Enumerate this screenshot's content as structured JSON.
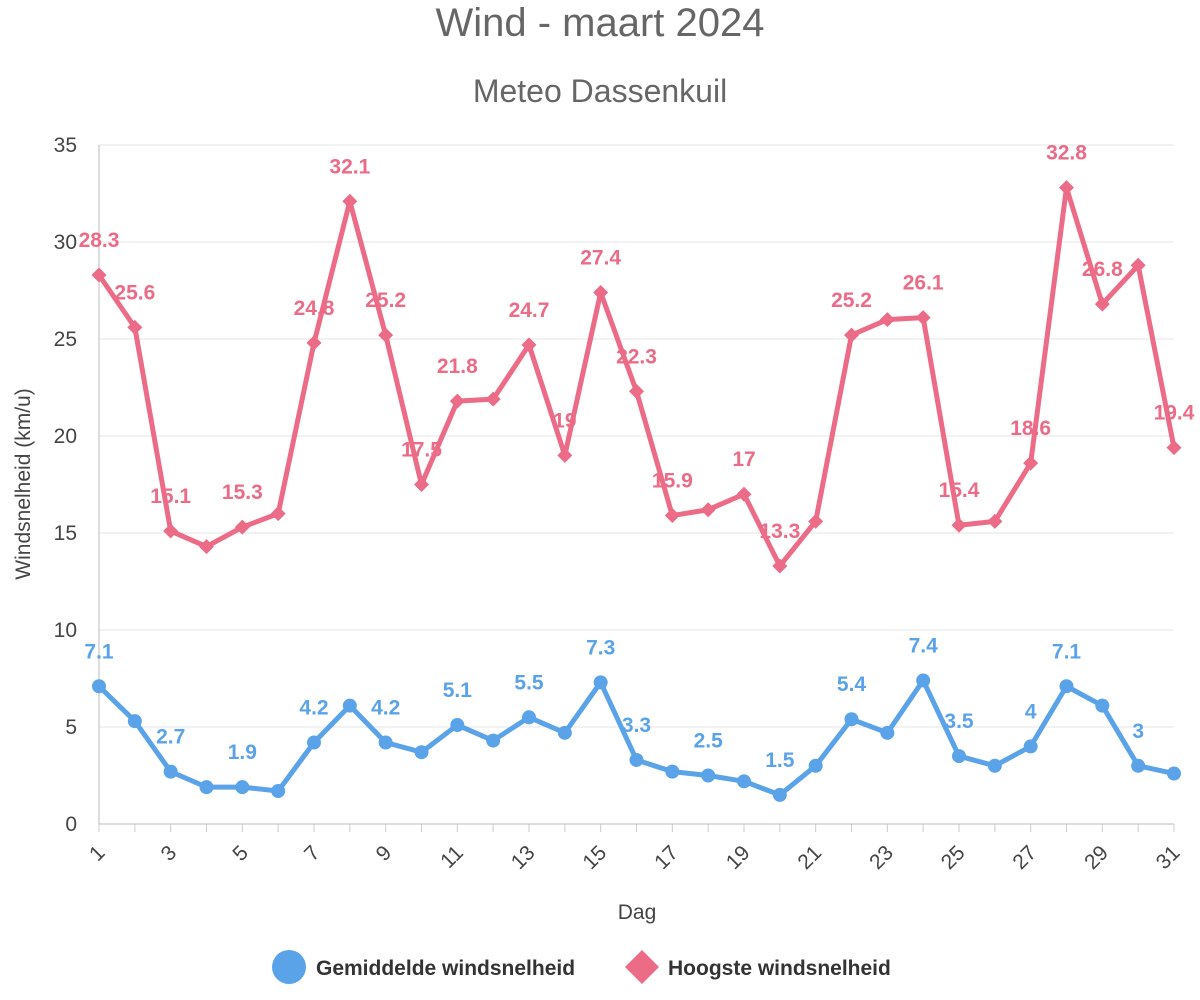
{
  "chart_data": {
    "type": "line",
    "title": "Wind - maart 2024",
    "subtitle": "Meteo Dassenkuil",
    "xlabel": "Dag",
    "ylabel": "Windsnelheid (km/u)",
    "ylim": [
      0,
      35
    ],
    "yticks": [
      0,
      5,
      10,
      15,
      20,
      25,
      30,
      35
    ],
    "x": [
      1,
      2,
      3,
      4,
      5,
      6,
      7,
      8,
      9,
      10,
      11,
      12,
      13,
      14,
      15,
      16,
      17,
      18,
      19,
      20,
      21,
      22,
      23,
      24,
      25,
      26,
      27,
      28,
      29,
      30,
      31
    ],
    "xtick_labels": [
      "1",
      "3",
      "5",
      "7",
      "9",
      "11",
      "13",
      "15",
      "17",
      "19",
      "21",
      "23",
      "25",
      "27",
      "29",
      "31"
    ],
    "grid": "horizontal",
    "legend_position": "bottom",
    "series": [
      {
        "name": "Gemiddelde windsnelheid",
        "color": "#5ba3e8",
        "marker": "circle",
        "values": [
          7.1,
          5.3,
          2.7,
          1.9,
          1.9,
          1.7,
          4.2,
          6.1,
          4.2,
          3.7,
          5.1,
          4.3,
          5.5,
          4.7,
          7.3,
          3.3,
          2.7,
          2.5,
          2.2,
          1.5,
          3.0,
          5.4,
          4.7,
          7.4,
          3.5,
          3.0,
          4.0,
          7.1,
          6.1,
          3.0,
          2.6
        ],
        "labels": [
          "7.1",
          "",
          "2.7",
          "",
          "1.9",
          "",
          "4.2",
          "",
          "4.2",
          "",
          "5.1",
          "",
          "5.5",
          "",
          "7.3",
          "3.3",
          "",
          "2.5",
          "",
          "1.5",
          "",
          "5.4",
          "",
          "7.4",
          "3.5",
          "",
          "4",
          "7.1",
          "",
          "3",
          ""
        ]
      },
      {
        "name": "Hoogste windsnelheid",
        "color": "#ec6b86",
        "marker": "diamond",
        "values": [
          28.3,
          25.6,
          15.1,
          14.3,
          15.3,
          16.0,
          24.8,
          32.1,
          25.2,
          17.5,
          21.8,
          21.9,
          24.7,
          19.0,
          27.4,
          22.3,
          15.9,
          16.2,
          17.0,
          13.3,
          15.6,
          25.2,
          26.0,
          26.1,
          15.4,
          15.6,
          18.6,
          32.8,
          26.8,
          28.8,
          19.4
        ],
        "labels": [
          "28.3",
          "25.6",
          "15.1",
          "",
          "15.3",
          "",
          "24.8",
          "32.1",
          "25.2",
          "17.5",
          "21.8",
          "",
          "24.7",
          "19",
          "27.4",
          "22.3",
          "15.9",
          "",
          "17",
          "13.3",
          "",
          "25.2",
          "",
          "26.1",
          "15.4",
          "",
          "18.6",
          "32.8",
          "26.8",
          "",
          "19.4"
        ]
      }
    ]
  }
}
